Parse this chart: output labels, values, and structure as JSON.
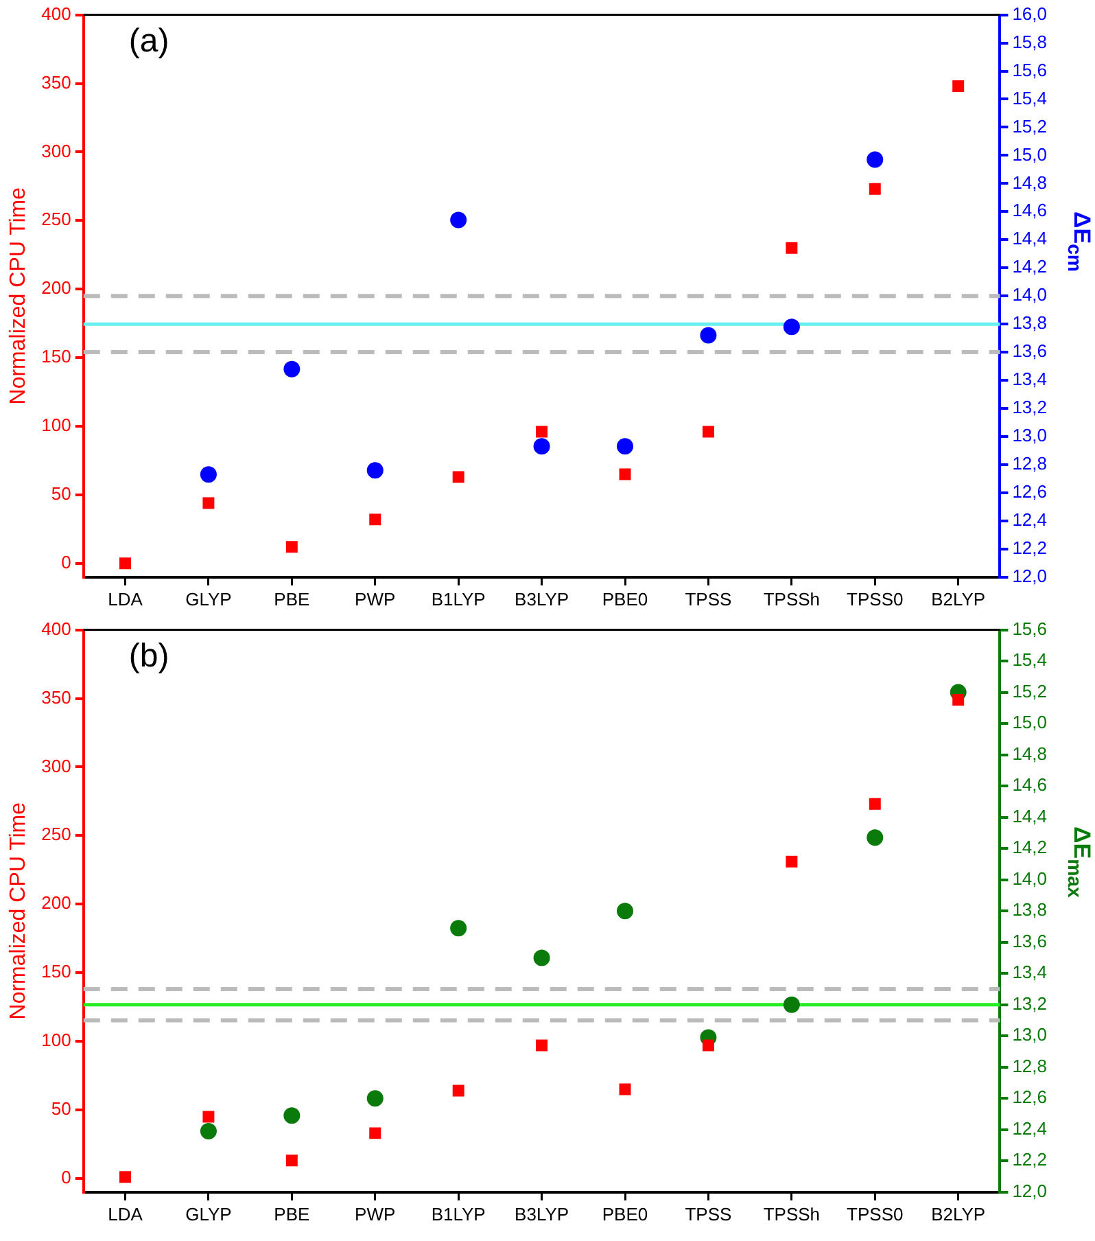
{
  "chart_data": [
    {
      "type": "scatter",
      "annotations": [
        "(a)"
      ],
      "ylabel": "Normalized CPU Time",
      "y2label": "ΔE$_{cm}$",
      "categories": [
        "LDA",
        "GLYP",
        "PBE",
        "PWP",
        "B1LYP",
        "B3LYP",
        "PBE0",
        "TPSS",
        "TPSSh",
        "TPSS0",
        "B2LYP"
      ],
      "series": [
        {
          "color": "#ff0000",
          "marker": "square",
          "values": [
            0,
            44,
            12,
            32,
            63,
            96,
            65,
            96,
            230,
            273,
            348
          ]
        },
        {
          "color": "#0000ff",
          "marker": "circle",
          "axis": "y2",
          "values": [
            null,
            12.73,
            13.48,
            12.76,
            14.54,
            12.93,
            12.93,
            13.72,
            13.78,
            14.97,
            null
          ]
        }
      ],
      "ylim": [
        -10,
        400
      ],
      "yticks": [
        0,
        50,
        100,
        150,
        200,
        250,
        300,
        350,
        400
      ],
      "y2lim": [
        12,
        16
      ],
      "y2ticks": [
        {
          "value": 12,
          "label": "12,0"
        },
        {
          "value": 12.2,
          "label": "12,2"
        },
        {
          "value": 12.4,
          "label": "12,4"
        },
        {
          "value": 12.6,
          "label": "12,6"
        },
        {
          "value": 12.8,
          "label": "12,8"
        },
        {
          "value": 13,
          "label": "13,0"
        },
        {
          "value": 13.2,
          "label": "13,2"
        },
        {
          "value": 13.4,
          "label": "13,4"
        },
        {
          "value": 13.6,
          "label": "13,6"
        },
        {
          "value": 13.8,
          "label": "13,8"
        },
        {
          "value": 14,
          "label": "14,0"
        },
        {
          "value": 14.2,
          "label": "14,2"
        },
        {
          "value": 14.4,
          "label": "14,4"
        },
        {
          "value": 14.6,
          "label": "14,6"
        },
        {
          "value": 14.8,
          "label": "14,8"
        },
        {
          "value": 15,
          "label": "15,0"
        },
        {
          "value": 15.2,
          "label": "15,2"
        },
        {
          "value": 15.4,
          "label": "15,4"
        },
        {
          "value": 15.6,
          "label": "15,6"
        },
        {
          "value": 15.8,
          "label": "15,8"
        },
        {
          "value": 16,
          "label": "16,0"
        }
      ],
      "ref_lines": [
        {
          "axis": "y2",
          "value": 13.8,
          "color": "#66f0f0",
          "line_style": "solid"
        },
        {
          "axis": "y2",
          "value": 14.0,
          "color": "#bbbbbb",
          "line_style": "dashed"
        },
        {
          "axis": "y2",
          "value": 13.6,
          "color": "#bbbbbb",
          "line_style": "dashed"
        }
      ],
      "grid": false,
      "legend": false
    },
    {
      "type": "scatter",
      "annotations": [
        "(b)"
      ],
      "ylabel": "Normalized CPU Time",
      "y2label": "ΔE$_{max}$",
      "categories": [
        "LDA",
        "GLYP",
        "PBE",
        "PWP",
        "B1LYP",
        "B3LYP",
        "PBE0",
        "TPSS",
        "TPSSh",
        "TPSS0",
        "B2LYP"
      ],
      "series": [
        {
          "color": "#ff0000",
          "marker": "square",
          "values": [
            1,
            45,
            13,
            33,
            64,
            97,
            65,
            97,
            231,
            273,
            349
          ]
        },
        {
          "color": "#0a7a0a",
          "marker": "circle",
          "axis": "y2",
          "values": [
            null,
            12.39,
            12.49,
            12.6,
            13.69,
            13.5,
            13.8,
            12.99,
            13.2,
            14.27,
            15.2
          ]
        }
      ],
      "ylim": [
        -10,
        400
      ],
      "yticks": [
        0,
        50,
        100,
        150,
        200,
        250,
        300,
        350,
        400
      ],
      "y2lim": [
        12,
        15.6
      ],
      "y2ticks": [
        {
          "value": 12,
          "label": "12,0"
        },
        {
          "value": 12.2,
          "label": "12,2"
        },
        {
          "value": 12.4,
          "label": "12,4"
        },
        {
          "value": 12.6,
          "label": "12,6"
        },
        {
          "value": 12.8,
          "label": "12,8"
        },
        {
          "value": 13,
          "label": "13,0"
        },
        {
          "value": 13.2,
          "label": "13,2"
        },
        {
          "value": 13.4,
          "label": "13,4"
        },
        {
          "value": 13.6,
          "label": "13,6"
        },
        {
          "value": 13.8,
          "label": "13,8"
        },
        {
          "value": 14,
          "label": "14,0"
        },
        {
          "value": 14.2,
          "label": "14,2"
        },
        {
          "value": 14.4,
          "label": "14,4"
        },
        {
          "value": 14.6,
          "label": "14,6"
        },
        {
          "value": 14.8,
          "label": "14,8"
        },
        {
          "value": 15,
          "label": "15,0"
        },
        {
          "value": 15.2,
          "label": "15,2"
        },
        {
          "value": 15.4,
          "label": "15,4"
        },
        {
          "value": 15.6,
          "label": "15,6"
        }
      ],
      "ref_lines": [
        {
          "axis": "y2",
          "value": 13.2,
          "color": "#22ee22",
          "line_style": "solid"
        },
        {
          "axis": "y2",
          "value": 13.3,
          "color": "#bbbbbb",
          "line_style": "dashed"
        },
        {
          "axis": "y2",
          "value": 13.1,
          "color": "#bbbbbb",
          "line_style": "dashed"
        }
      ],
      "grid": false,
      "legend": false
    }
  ]
}
